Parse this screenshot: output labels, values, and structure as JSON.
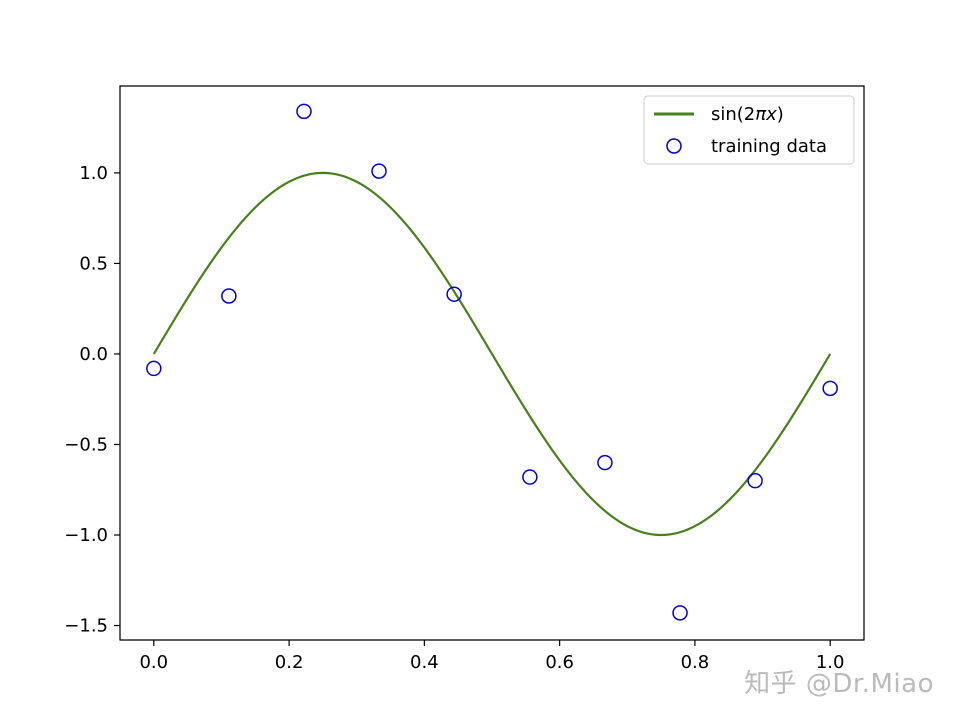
{
  "chart_data": {
    "type": "line",
    "title": "",
    "xlabel": "",
    "ylabel": "",
    "xlim": [
      -0.05,
      1.05
    ],
    "ylim": [
      -1.58,
      1.48
    ],
    "xticks": [
      0.0,
      0.2,
      0.4,
      0.6,
      0.8,
      1.0
    ],
    "xtick_labels": [
      "0.0",
      "0.2",
      "0.4",
      "0.6",
      "0.8",
      "1.0"
    ],
    "yticks": [
      1.0,
      0.5,
      0.0,
      -0.5,
      -1.0,
      -1.5
    ],
    "ytick_labels": [
      "1.0",
      "0.5",
      "0.0",
      "−0.5",
      "−1.0",
      "−1.5"
    ],
    "grid": false,
    "legend_position": "top-right",
    "series": [
      {
        "name": "sin(2πx)",
        "kind": "line",
        "color": "#4a7f1f",
        "function": "sin(2*pi*x)",
        "x_range": [
          0.0,
          1.0
        ]
      },
      {
        "name": "training data",
        "kind": "scatter",
        "color": "#0000cc",
        "marker": "hollow-circle",
        "x": [
          0.0,
          0.111,
          0.222,
          0.333,
          0.444,
          0.556,
          0.667,
          0.778,
          0.889,
          1.0
        ],
        "y": [
          -0.08,
          0.32,
          1.34,
          1.01,
          0.33,
          -0.68,
          -0.6,
          -1.43,
          -0.7,
          -0.19
        ]
      }
    ]
  },
  "legend": {
    "line_label": "sin(2",
    "line_label_pi": "πx",
    "line_label_close": ")",
    "scatter_label": "training data"
  },
  "watermark": "知乎 @Dr.Miao"
}
